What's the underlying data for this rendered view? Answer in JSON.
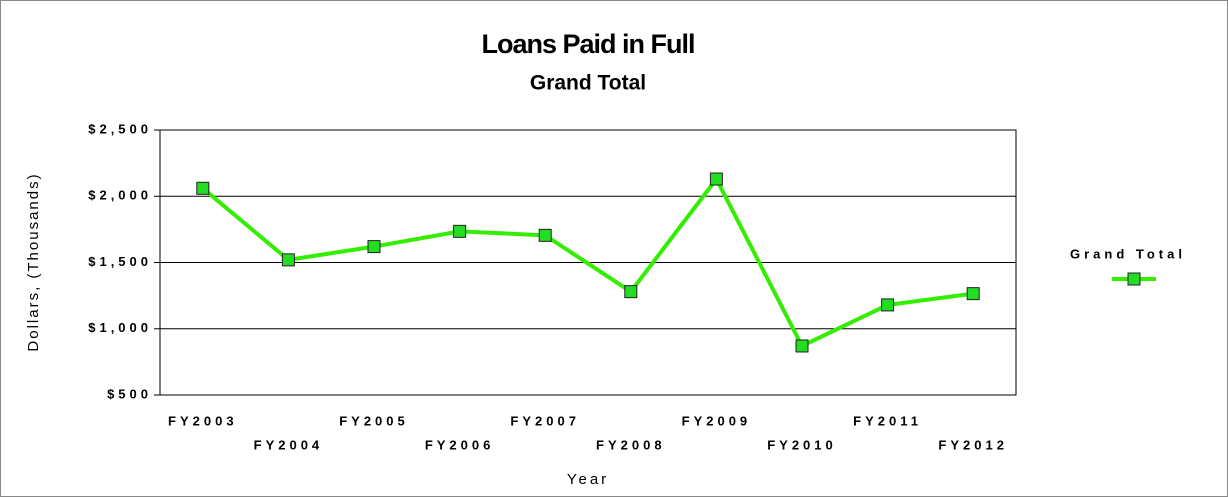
{
  "chart_data": {
    "type": "line",
    "title": "Loans Paid in Full",
    "subtitle": "Grand Total",
    "x_label": "Year",
    "y_label": "Dollars, (Thousands)",
    "categories": [
      "FY2003",
      "FY2004",
      "FY2005",
      "FY2006",
      "FY2007",
      "FY2008",
      "FY2009",
      "FY2010",
      "FY2011",
      "FY2012"
    ],
    "series": [
      {
        "name": "Grand Total",
        "color": "#33ee00",
        "marker_color": "#22dd22",
        "values": [
          2060,
          1520,
          1620,
          1735,
          1705,
          1280,
          2130,
          870,
          1180,
          1265
        ]
      }
    ],
    "ylim": [
      500,
      2500
    ],
    "yticks": [
      {
        "value": 500,
        "label": "$500"
      },
      {
        "value": 1000,
        "label": "$1,000"
      },
      {
        "value": 1500,
        "label": "$1,500"
      },
      {
        "value": 2000,
        "label": "$2,000"
      },
      {
        "value": 2500,
        "label": "$2,500"
      }
    ],
    "grid": true,
    "legend": "right"
  }
}
